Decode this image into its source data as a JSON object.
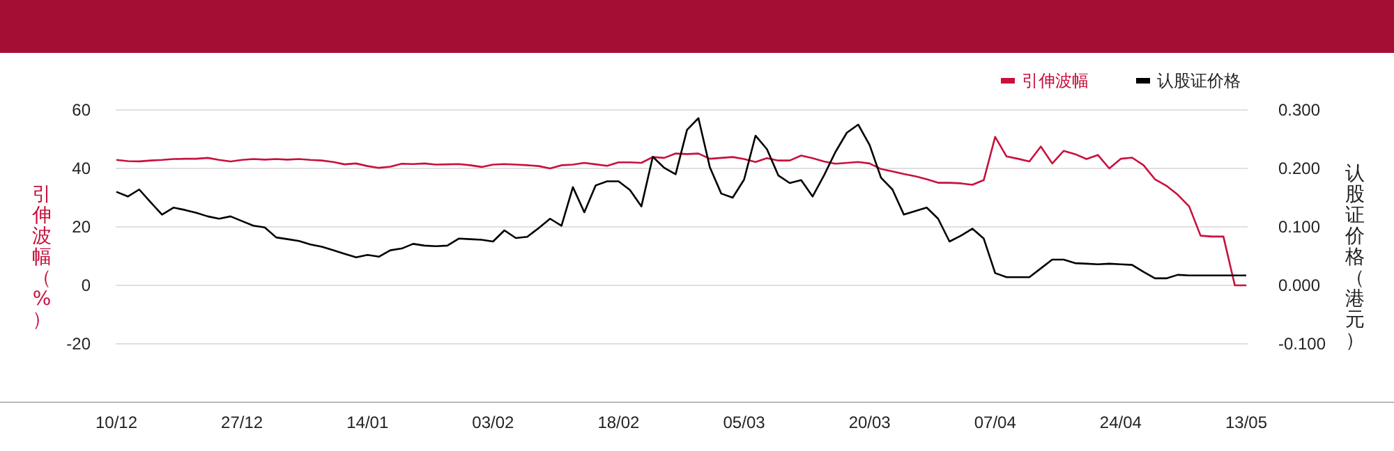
{
  "chart_data": {
    "type": "line",
    "categories": [
      "10/12",
      null,
      null,
      null,
      null,
      null,
      null,
      null,
      null,
      null,
      null,
      "27/12",
      null,
      null,
      null,
      null,
      null,
      null,
      null,
      null,
      null,
      null,
      "14/01",
      null,
      null,
      null,
      null,
      null,
      null,
      null,
      null,
      null,
      null,
      "03/02",
      null,
      null,
      null,
      null,
      null,
      null,
      null,
      null,
      null,
      null,
      "18/02",
      null,
      null,
      null,
      null,
      null,
      null,
      null,
      null,
      null,
      null,
      "05/03",
      null,
      null,
      null,
      null,
      null,
      null,
      null,
      null,
      null,
      null,
      "20/03",
      null,
      null,
      null,
      null,
      null,
      null,
      null,
      null,
      null,
      null,
      "07/04",
      null,
      null,
      null,
      null,
      null,
      null,
      null,
      null,
      null,
      null,
      "24/04",
      null,
      null,
      null,
      null,
      null,
      null,
      null,
      null,
      null,
      null,
      "13/05"
    ],
    "ylabel": "引伸波幅（%）",
    "y2label": "认股证价格（港元）",
    "ylim": [
      -40,
      60
    ],
    "yticks": [
      -20,
      0,
      20,
      40,
      60
    ],
    "y2lim": [
      -0.2,
      0.3
    ],
    "y2ticks": [
      {
        "value": -0.1,
        "label": "-0.100"
      },
      {
        "value": 0,
        "label": "0.000"
      },
      {
        "value": 0.1,
        "label": "0.100"
      },
      {
        "value": 0.2,
        "label": "0.200"
      },
      {
        "value": 0.3,
        "label": "0.300"
      }
    ],
    "grid": "y",
    "legend": "top right",
    "series": [
      {
        "name": "引伸波幅",
        "color": "#c8103c",
        "values": [
          42.9,
          42.5,
          42.4,
          42.7,
          42.9,
          43.2,
          43.3,
          43.3,
          43.6,
          42.9,
          42.4,
          42.9,
          43.2,
          43.0,
          43.2,
          43.0,
          43.2,
          42.9,
          42.7,
          42.2,
          41.4,
          41.7,
          40.8,
          40.2,
          40.6,
          41.6,
          41.5,
          41.7,
          41.3,
          41.4,
          41.5,
          41.1,
          40.5,
          41.3,
          41.5,
          41.3,
          41.1,
          40.8,
          40.0,
          41.1,
          41.3,
          41.9,
          41.4,
          40.9,
          42.1,
          42.1,
          41.9,
          43.9,
          43.6,
          45.1,
          44.9,
          45.1,
          43.3,
          43.6,
          43.9,
          43.2,
          42.2,
          43.5,
          42.7,
          42.7,
          44.4,
          43.5,
          42.4,
          41.6,
          41.9,
          42.2,
          41.7,
          39.8,
          39.0,
          38.1,
          37.3,
          36.3,
          35.1,
          35.1,
          34.9,
          34.4,
          36.0,
          50.8,
          44.1,
          43.3,
          42.4,
          47.5,
          41.7,
          46.0,
          44.9,
          43.2,
          44.6,
          40.0,
          43.3,
          43.7,
          41.1,
          36.3,
          34.1,
          31.0,
          27.0,
          17.0,
          16.7,
          16.7,
          0,
          0
        ]
      },
      {
        "name": "认股证价格",
        "color": "#000000",
        "axis": "y2",
        "values": [
          0.16,
          0.152,
          0.164,
          0.142,
          0.121,
          0.133,
          0.129,
          0.124,
          0.118,
          0.114,
          0.118,
          0.11,
          0.102,
          0.099,
          0.082,
          0.079,
          0.076,
          0.07,
          0.066,
          0.06,
          0.054,
          0.048,
          0.052,
          0.049,
          0.06,
          0.063,
          0.071,
          0.068,
          0.067,
          0.068,
          0.08,
          0.079,
          0.078,
          0.075,
          0.094,
          0.081,
          0.083,
          0.098,
          0.114,
          0.102,
          0.168,
          0.125,
          0.171,
          0.178,
          0.178,
          0.163,
          0.135,
          0.22,
          0.201,
          0.19,
          0.266,
          0.286,
          0.202,
          0.157,
          0.15,
          0.181,
          0.256,
          0.233,
          0.188,
          0.175,
          0.18,
          0.152,
          0.188,
          0.228,
          0.261,
          0.275,
          0.24,
          0.184,
          0.164,
          0.121,
          0.127,
          0.133,
          0.114,
          0.075,
          0.085,
          0.097,
          0.08,
          0.021,
          0.014,
          0.014,
          0.014,
          0.029,
          0.044,
          0.044,
          0.038,
          0.037,
          0.036,
          0.037,
          0.036,
          0.035,
          0.023,
          0.012,
          0.012,
          0.018,
          0.017,
          0.017,
          0.017,
          0.017,
          0.017,
          0.017
        ]
      }
    ]
  }
}
